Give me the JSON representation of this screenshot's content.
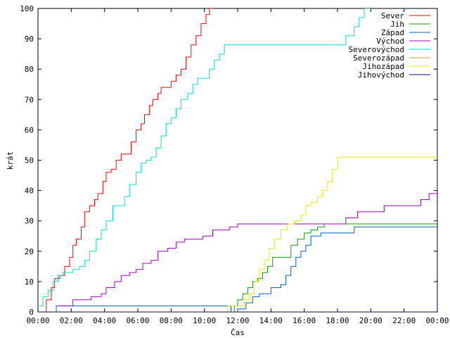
{
  "chart_data": {
    "type": "line",
    "xlabel": "Čas",
    "ylabel": "krát",
    "xlim": [
      0,
      24
    ],
    "ylim": [
      0,
      100
    ],
    "x_ticks": [
      {
        "value": 0,
        "label": "00:00"
      },
      {
        "value": 2,
        "label": "02:00"
      },
      {
        "value": 4,
        "label": "04:00"
      },
      {
        "value": 6,
        "label": "06:00"
      },
      {
        "value": 8,
        "label": "08:00"
      },
      {
        "value": 10,
        "label": "10:00"
      },
      {
        "value": 12,
        "label": "12:00"
      },
      {
        "value": 14,
        "label": "14:00"
      },
      {
        "value": 16,
        "label": "16:00"
      },
      {
        "value": 18,
        "label": "18:00"
      },
      {
        "value": 20,
        "label": "20:00"
      },
      {
        "value": 22,
        "label": "22:00"
      },
      {
        "value": 24,
        "label": "00:00"
      }
    ],
    "y_ticks": [
      0,
      10,
      20,
      30,
      40,
      50,
      60,
      70,
      80,
      90,
      100
    ],
    "grid": false,
    "legend_position": "top-right",
    "series": [
      {
        "name": "Sever",
        "color": "#ff0000",
        "x": [
          0.3,
          0.5,
          0.8,
          1.0,
          1.3,
          1.6,
          1.9,
          2.1,
          2.3,
          2.6,
          2.8,
          3.1,
          3.4,
          3.6,
          3.9,
          4.1,
          4.4,
          4.7,
          5.0,
          5.3,
          5.6,
          5.9,
          6.2,
          6.4,
          6.7,
          6.9,
          7.2,
          7.4,
          7.7,
          8.0,
          8.3,
          8.6,
          8.9,
          9.2,
          9.5,
          9.8,
          10.1,
          10.3,
          10.5
        ],
        "y": [
          0,
          4,
          8,
          11,
          12,
          15,
          18,
          22,
          24,
          28,
          33,
          35,
          37,
          39,
          43,
          46,
          47,
          50,
          52,
          52,
          56,
          60,
          62,
          65,
          68,
          70,
          72,
          74,
          74,
          76,
          78,
          80,
          84,
          88,
          91,
          95,
          98,
          100,
          100
        ]
      },
      {
        "name": "Jih",
        "color": "#00a000",
        "x": [
          11.0,
          11.8,
          12.0,
          12.3,
          12.6,
          12.9,
          13.2,
          13.5,
          13.8,
          14.1,
          14.4,
          14.8,
          15.2,
          15.6,
          16.0,
          16.4,
          16.8,
          17.2,
          18.0,
          24.0
        ],
        "y": [
          0,
          2,
          4,
          6,
          8,
          10,
          11,
          13,
          15,
          18,
          18,
          18,
          22,
          24,
          26,
          27,
          28,
          29,
          29,
          29
        ]
      },
      {
        "name": "Západ",
        "color": "#0060c0",
        "x": [
          0,
          1.0,
          1.1,
          11.5,
          11.6,
          12.0,
          12.5,
          12.9,
          13.3,
          13.7,
          14.0,
          14.3,
          14.6,
          14.9,
          15.2,
          15.5,
          15.8,
          16.1,
          16.4,
          17.0,
          18.0,
          19.0,
          24.0
        ],
        "y": [
          0,
          0,
          2,
          2,
          0,
          1,
          3,
          5,
          6,
          6,
          8,
          8,
          9,
          12,
          15,
          18,
          20,
          22,
          25,
          26,
          26,
          28,
          28
        ]
      },
      {
        "name": "Východ",
        "color": "#a000c0",
        "x": [
          1.2,
          1.8,
          2.1,
          2.8,
          3.2,
          3.8,
          4.1,
          4.6,
          5.0,
          5.5,
          5.9,
          6.3,
          6.8,
          7.2,
          7.8,
          8.3,
          8.8,
          9.3,
          9.9,
          10.5,
          11.0,
          11.5,
          12.0,
          12.5,
          13.0,
          14.0,
          15.0,
          16.0,
          17.0,
          18.0,
          18.5,
          19.2,
          20.0,
          20.8,
          21.5,
          22.5,
          23.0,
          23.5,
          24.0
        ],
        "y": [
          2,
          2,
          4,
          4,
          5,
          6,
          8,
          10,
          12,
          13,
          14,
          16,
          17,
          20,
          21,
          23,
          24,
          24,
          25,
          27,
          27,
          28,
          29,
          29,
          29,
          29,
          29,
          29,
          29,
          29,
          31,
          33,
          33,
          35,
          35,
          35,
          37,
          39,
          39
        ]
      },
      {
        "name": "Severovýchod",
        "color": "#00dada",
        "x": [
          0.1,
          0.3,
          0.6,
          0.9,
          1.2,
          1.5,
          1.8,
          2.1,
          2.5,
          2.8,
          3.1,
          3.5,
          3.8,
          4.1,
          4.5,
          4.9,
          5.2,
          5.5,
          5.9,
          6.2,
          6.5,
          6.8,
          7.1,
          7.4,
          7.7,
          8.0,
          8.3,
          8.6,
          9.0,
          9.3,
          9.6,
          9.9,
          10.3,
          10.6,
          10.9,
          11.2,
          11.5,
          12.0,
          14.0,
          16.0,
          17.0,
          18.0,
          18.5,
          19.0,
          19.3,
          19.6,
          20.0
        ],
        "y": [
          2,
          5,
          7,
          10,
          12,
          13,
          13,
          14,
          15,
          17,
          20,
          24,
          27,
          30,
          35,
          35,
          38,
          42,
          46,
          49,
          50,
          51,
          54,
          58,
          62,
          64,
          67,
          70,
          72,
          75,
          77,
          77,
          80,
          83,
          85,
          88,
          88,
          88,
          88,
          88,
          88,
          88,
          91,
          94,
          97,
          100,
          100
        ]
      },
      {
        "name": "Severozápad",
        "color": "#c0a040",
        "x": [
          0,
          24
        ],
        "y": [
          0,
          0
        ]
      },
      {
        "name": "Jihozápad",
        "color": "#e8e800",
        "x": [
          11.0,
          11.4,
          12.2,
          12.4,
          12.7,
          13.0,
          13.3,
          13.6,
          13.9,
          14.2,
          14.6,
          15.0,
          15.4,
          15.8,
          16.1,
          16.4,
          16.8,
          17.1,
          17.4,
          17.7,
          18.0,
          18.5,
          24.0
        ],
        "y": [
          0,
          2,
          2,
          4,
          6,
          10,
          14,
          17,
          21,
          24,
          27,
          29,
          30,
          32,
          35,
          36,
          38,
          40,
          43,
          47,
          51,
          51,
          51
        ]
      },
      {
        "name": "Jihovýchod",
        "color": "#2000a0",
        "x": [
          0,
          24
        ],
        "y": [
          0,
          0
        ]
      }
    ]
  }
}
